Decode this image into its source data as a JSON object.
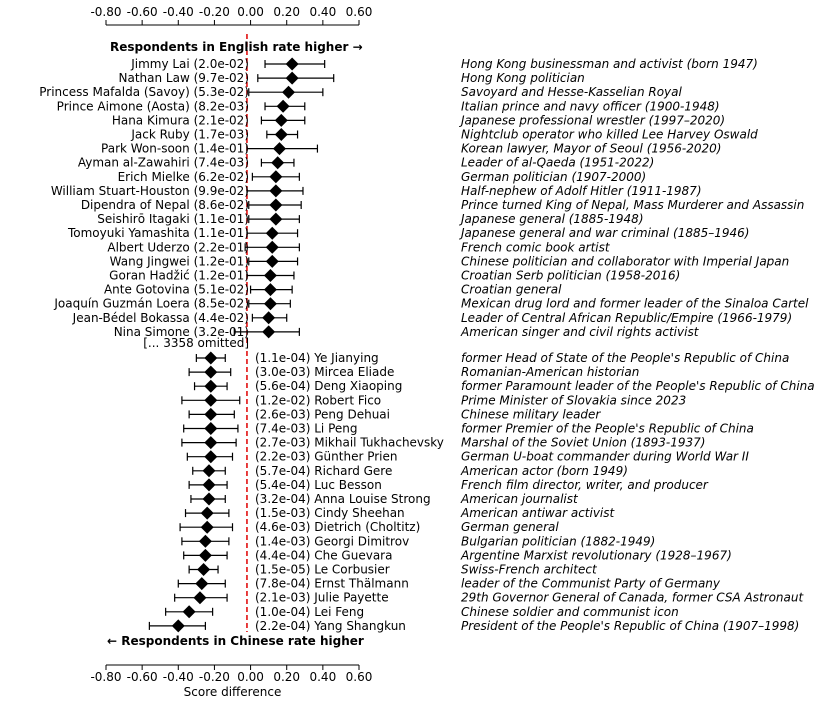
{
  "chart_data": {
    "type": "scatter",
    "subtype": "dot-with-error-bars",
    "xlabel": "Score difference",
    "xlim": [
      -0.8,
      0.6
    ],
    "xticks": [
      "-0.80",
      "-0.60",
      "-0.40",
      "-0.20",
      "0.00",
      "0.20",
      "0.40",
      "0.60"
    ],
    "reference_line": {
      "x": -0.02,
      "color": "#e00000",
      "style": "dashed"
    },
    "marker_color": "#000000",
    "top_header": "Respondents in English rate higher →",
    "bottom_header": "← Respondents in Chinese rate higher",
    "omitted_text": "[... 3358 omitted]",
    "top": [
      {
        "name": "Jimmy Lai",
        "p": "2.0e-02",
        "value": 0.23,
        "low": 0.08,
        "high": 0.41,
        "description": "Hong Kong businessman and activist (born 1947)"
      },
      {
        "name": "Nathan Law",
        "p": "9.7e-02",
        "value": 0.23,
        "low": 0.04,
        "high": 0.46,
        "description": "Hong Kong politician"
      },
      {
        "name": "Princess Mafalda (Savoy)",
        "p": "5.3e-02",
        "value": 0.21,
        "low": -0.01,
        "high": 0.4,
        "description": "Savoyard and Hesse-Kasselian Royal"
      },
      {
        "name": "Prince Aimone (Aosta)",
        "p": "8.2e-03",
        "value": 0.18,
        "low": 0.08,
        "high": 0.3,
        "description": "Italian prince and navy officer (1900-1948)"
      },
      {
        "name": "Hana Kimura",
        "p": "2.1e-02",
        "value": 0.17,
        "low": 0.06,
        "high": 0.3,
        "description": "Japanese professional wrestler (1997–2020)"
      },
      {
        "name": "Jack Ruby",
        "p": "1.7e-03",
        "value": 0.17,
        "low": 0.09,
        "high": 0.26,
        "description": "Nightclub operator who killed Lee Harvey Oswald"
      },
      {
        "name": "Park Won-soon",
        "p": "1.4e-01",
        "value": 0.16,
        "low": -0.02,
        "high": 0.37,
        "description": "Korean lawyer, Mayor of Seoul (1956-2020)"
      },
      {
        "name": "Ayman al-Zawahiri",
        "p": "7.4e-03",
        "value": 0.15,
        "low": 0.06,
        "high": 0.24,
        "description": "Leader of al-Qaeda (1951-2022)"
      },
      {
        "name": "Erich Mielke",
        "p": "6.2e-02",
        "value": 0.14,
        "low": 0.01,
        "high": 0.27,
        "description": "German politician (1907-2000)"
      },
      {
        "name": "William Stuart-Houston",
        "p": "9.9e-02",
        "value": 0.14,
        "low": -0.02,
        "high": 0.29,
        "description": "Half-nephew of Adolf Hitler (1911-1987)"
      },
      {
        "name": "Dipendra of Nepal",
        "p": "8.6e-02",
        "value": 0.14,
        "low": -0.01,
        "high": 0.28,
        "description": "Prince turned King of Nepal, Mass Murderer and Assassin"
      },
      {
        "name": "Seishirō Itagaki",
        "p": "1.1e-01",
        "value": 0.14,
        "low": -0.01,
        "high": 0.27,
        "description": "Japanese general (1885-1948)"
      },
      {
        "name": "Tomoyuki Yamashita",
        "p": "1.1e-01",
        "value": 0.12,
        "low": -0.02,
        "high": 0.26,
        "description": "Japanese general and war criminal (1885–1946)"
      },
      {
        "name": "Albert Uderzo",
        "p": "2.2e-01",
        "value": 0.12,
        "low": -0.03,
        "high": 0.27,
        "description": "French comic book artist"
      },
      {
        "name": "Wang Jingwei",
        "p": "1.2e-01",
        "value": 0.12,
        "low": -0.01,
        "high": 0.26,
        "description": "Chinese politician and collaborator with Imperial Japan"
      },
      {
        "name": "Goran Hadžić",
        "p": "1.2e-01",
        "value": 0.11,
        "low": -0.02,
        "high": 0.24,
        "description": "Croatian Serb politician (1958-2016)"
      },
      {
        "name": "Ante Gotovina",
        "p": "5.1e-02",
        "value": 0.11,
        "low": 0.0,
        "high": 0.23,
        "description": "Croatian general"
      },
      {
        "name": "Joaquín Guzmán Loera",
        "p": "8.5e-02",
        "value": 0.11,
        "low": -0.01,
        "high": 0.22,
        "description": "Mexican drug lord and former leader of the Sinaloa Cartel"
      },
      {
        "name": "Jean-Bédel Bokassa",
        "p": "4.4e-02",
        "value": 0.1,
        "low": 0.01,
        "high": 0.2,
        "description": "Leader of Central African Republic/Empire (1966-1979)"
      },
      {
        "name": "Nina Simone",
        "p": "3.2e-01",
        "value": 0.1,
        "low": -0.09,
        "high": 0.27,
        "description": "American singer and civil rights activist"
      }
    ],
    "bottom": [
      {
        "name": "Ye Jianying",
        "p": "1.1e-04",
        "value": -0.22,
        "low": -0.3,
        "high": -0.14,
        "description": "former Head of State of the People's Republic of China"
      },
      {
        "name": "Mircea Eliade",
        "p": "3.0e-03",
        "value": -0.22,
        "low": -0.34,
        "high": -0.11,
        "description": "Romanian-American historian"
      },
      {
        "name": "Deng Xiaoping",
        "p": "5.6e-04",
        "value": -0.22,
        "low": -0.31,
        "high": -0.13,
        "description": "former Paramount leader of the People's Republic of China"
      },
      {
        "name": "Robert Fico",
        "p": "1.2e-02",
        "value": -0.22,
        "low": -0.38,
        "high": -0.06,
        "description": "Prime Minister of Slovakia since 2023"
      },
      {
        "name": "Peng Dehuai",
        "p": "2.6e-03",
        "value": -0.22,
        "low": -0.34,
        "high": -0.09,
        "description": "Chinese military leader"
      },
      {
        "name": "Li Peng",
        "p": "7.4e-03",
        "value": -0.22,
        "low": -0.37,
        "high": -0.07,
        "description": "former Premier of the People's Republic of China"
      },
      {
        "name": "Mikhail Tukhachevsky",
        "p": "2.7e-03",
        "value": -0.22,
        "low": -0.38,
        "high": -0.08,
        "description": "Marshal of the Soviet Union (1893-1937)"
      },
      {
        "name": "Günther Prien",
        "p": "2.2e-03",
        "value": -0.22,
        "low": -0.35,
        "high": -0.1,
        "description": "German U-boat commander during World War II"
      },
      {
        "name": "Richard Gere",
        "p": "5.7e-04",
        "value": -0.23,
        "low": -0.32,
        "high": -0.14,
        "description": "American actor (born 1949)"
      },
      {
        "name": "Luc Besson",
        "p": "5.4e-04",
        "value": -0.23,
        "low": -0.34,
        "high": -0.13,
        "description": "French film director, writer, and producer"
      },
      {
        "name": "Anna Louise Strong",
        "p": "3.2e-04",
        "value": -0.23,
        "low": -0.33,
        "high": -0.14,
        "description": "American journalist"
      },
      {
        "name": "Cindy Sheehan",
        "p": "1.5e-03",
        "value": -0.24,
        "low": -0.36,
        "high": -0.12,
        "description": "American antiwar activist"
      },
      {
        "name": "Dietrich (Choltitz)",
        "p": "4.6e-03",
        "value": -0.24,
        "low": -0.39,
        "high": -0.1,
        "description": "German general"
      },
      {
        "name": "Georgi Dimitrov",
        "p": "1.4e-03",
        "value": -0.25,
        "low": -0.38,
        "high": -0.12,
        "description": "Bulgarian politician (1882-1949)"
      },
      {
        "name": "Che Guevara",
        "p": "4.4e-04",
        "value": -0.25,
        "low": -0.37,
        "high": -0.13,
        "description": "Argentine Marxist revolutionary (1928–1967)"
      },
      {
        "name": "Le Corbusier",
        "p": "1.5e-05",
        "value": -0.26,
        "low": -0.34,
        "high": -0.18,
        "description": "Swiss-French architect"
      },
      {
        "name": "Ernst Thälmann",
        "p": "7.8e-04",
        "value": -0.27,
        "low": -0.4,
        "high": -0.14,
        "description": "leader of the Communist Party of Germany"
      },
      {
        "name": "Julie Payette",
        "p": "2.1e-03",
        "value": -0.28,
        "low": -0.42,
        "high": -0.13,
        "description": "29th Governor General of Canada, former CSA Astronaut"
      },
      {
        "name": "Lei Feng",
        "p": "1.0e-04",
        "value": -0.34,
        "low": -0.47,
        "high": -0.21,
        "description": "Chinese soldier and communist icon"
      },
      {
        "name": "Yang Shangkun",
        "p": "2.2e-04",
        "value": -0.4,
        "low": -0.56,
        "high": -0.25,
        "description": "President of the People's Republic of China (1907–1998)"
      }
    ]
  }
}
